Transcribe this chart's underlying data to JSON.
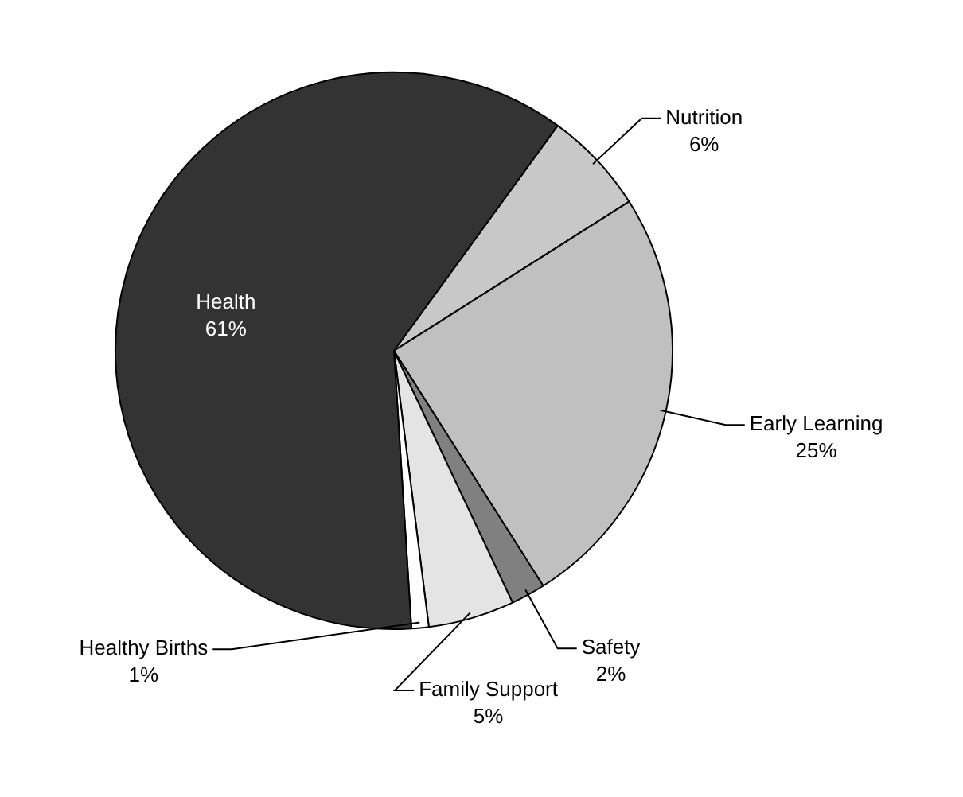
{
  "chart_data": {
    "type": "pie",
    "categories": [
      "Nutrition",
      "Early Learning",
      "Safety",
      "Family Support",
      "Healthy Births",
      "Health"
    ],
    "values": [
      6,
      25,
      2,
      5,
      1,
      61
    ],
    "colors": [
      "#c8c8c8",
      "#c0c0c0",
      "#808080",
      "#e4e4e4",
      "#ffffff",
      "#333333"
    ],
    "value_labels": [
      "6%",
      "25%",
      "2%",
      "5%",
      "1%",
      "61%"
    ],
    "legend": false
  }
}
